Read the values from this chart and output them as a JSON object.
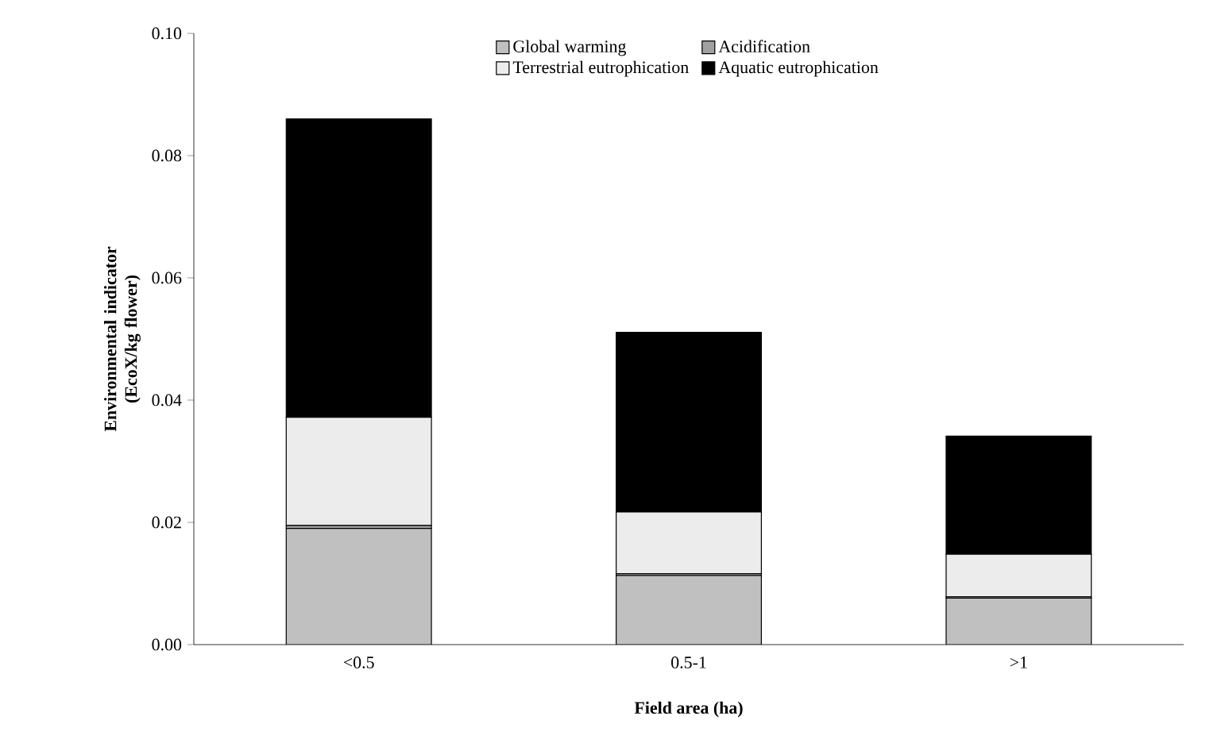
{
  "chart_data": {
    "type": "bar",
    "stacked": true,
    "xlabel": "Field area (ha)",
    "ylabel": "Environmental indicator (EcoX/kg flower)",
    "categories": [
      "<0.5",
      "0.5-1",
      ">1"
    ],
    "series": [
      {
        "name": "Global warming",
        "color": "#c0c0c0",
        "values": [
          0.019,
          0.0113,
          0.0076
        ]
      },
      {
        "name": "Acidification",
        "color": "#a0a0a0",
        "values": [
          0.0005,
          0.0003,
          0.0002
        ]
      },
      {
        "name": "Terrestrial eutrophication",
        "color": "#ececec",
        "values": [
          0.0177,
          0.0101,
          0.007
        ]
      },
      {
        "name": "Aquatic eutrophication",
        "color": "#000000",
        "values": [
          0.0488,
          0.0294,
          0.0193
        ]
      }
    ],
    "ylim": [
      0,
      0.1
    ],
    "yticks": [
      {
        "value": 0,
        "label": "0.00"
      },
      {
        "value": 0.02,
        "label": "0.02"
      },
      {
        "value": 0.04,
        "label": "0.04"
      },
      {
        "value": 0.06,
        "label": "0.06"
      },
      {
        "value": 0.08,
        "label": "0.08"
      },
      {
        "value": 0.1,
        "label": "0.10"
      }
    ],
    "grid": false,
    "legend": "top"
  }
}
